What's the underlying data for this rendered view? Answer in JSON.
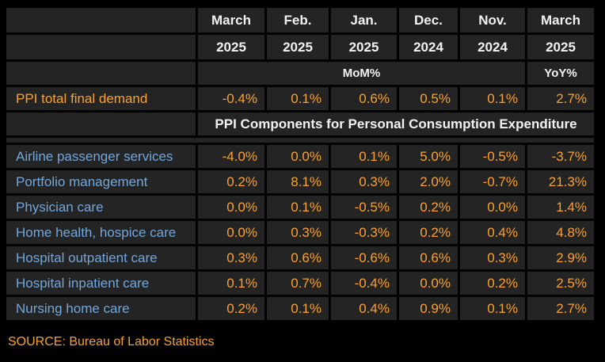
{
  "chart_data": {
    "type": "table",
    "column_headers": [
      {
        "month": "March",
        "year": "2025"
      },
      {
        "month": "Feb.",
        "year": "2025"
      },
      {
        "month": "Jan.",
        "year": "2025"
      },
      {
        "month": "Dec.",
        "year": "2024"
      },
      {
        "month": "Nov.",
        "year": "2024"
      },
      {
        "month": "March",
        "year": "2025"
      }
    ],
    "measure_labels": {
      "mom": "MoM%",
      "yoy": "YoY%"
    },
    "total_row": {
      "label": "PPI total final demand",
      "values": [
        "-0.4%",
        "0.1%",
        "0.6%",
        "0.5%",
        "0.1%",
        "2.7%"
      ]
    },
    "section_header": "PPI Components for Personal Consumption Expenditure",
    "rows": [
      {
        "label": "Airline passenger services",
        "values": [
          "-4.0%",
          "0.0%",
          "0.1%",
          "5.0%",
          "-0.5%",
          "-3.7%"
        ]
      },
      {
        "label": "Portfolio management",
        "values": [
          "0.2%",
          "8.1%",
          "0.3%",
          "2.0%",
          "-0.7%",
          "21.3%"
        ]
      },
      {
        "label": "Physician care",
        "values": [
          "0.0%",
          "0.1%",
          "-0.5%",
          "0.2%",
          "0.0%",
          "1.4%"
        ]
      },
      {
        "label": "Home health, hospice care",
        "values": [
          "0.0%",
          "0.3%",
          "-0.3%",
          "0.2%",
          "0.4%",
          "4.8%"
        ]
      },
      {
        "label": "Hospital outpatient care",
        "values": [
          "0.3%",
          "0.6%",
          "-0.6%",
          "0.6%",
          "0.3%",
          "2.9%"
        ]
      },
      {
        "label": "Hospital inpatient care",
        "values": [
          "0.1%",
          "0.7%",
          "-0.4%",
          "0.0%",
          "0.2%",
          "2.5%"
        ]
      },
      {
        "label": "Nursing home care",
        "values": [
          "0.2%",
          "0.1%",
          "0.4%",
          "0.9%",
          "0.1%",
          "2.7%"
        ]
      }
    ]
  },
  "source": "SOURCE: Bureau of Labor Statistics",
  "colors": {
    "background": "#000000",
    "cell_background": "#242424",
    "header_text": "#f2f2f2",
    "value_text": "#faa12f",
    "row_label_text": "#74a6d8",
    "source_text": "#faa12f"
  }
}
